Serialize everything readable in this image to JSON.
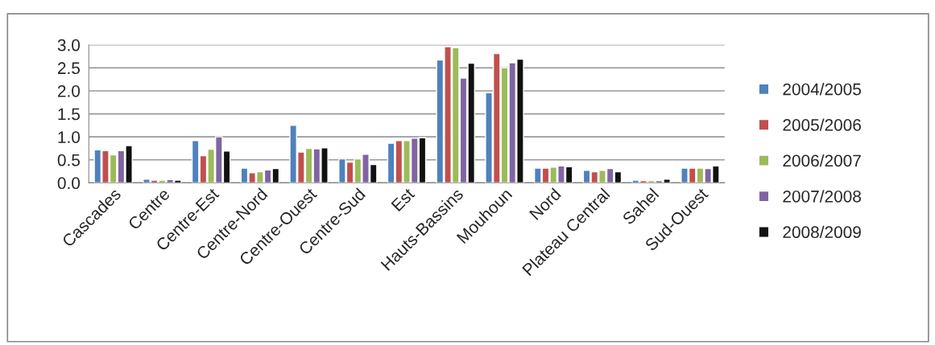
{
  "chart_data": {
    "type": "bar",
    "categories": [
      "Cascades",
      "Centre",
      "Centre-Est",
      "Centre-Nord",
      "Centre-Ouest",
      "Centre-Sud",
      "Est",
      "Hauts-Bassins",
      "Mouhoun",
      "Nord",
      "Plateau Central",
      "Sahel",
      "Sud-Ouest"
    ],
    "series": [
      {
        "name": "2004/2005",
        "color": "#4f81bd",
        "values": [
          0.72,
          0.08,
          0.92,
          0.32,
          1.25,
          0.52,
          0.86,
          2.67,
          1.96,
          0.32,
          0.27,
          0.06,
          0.32
        ]
      },
      {
        "name": "2005/2006",
        "color": "#c0504d",
        "values": [
          0.7,
          0.06,
          0.59,
          0.22,
          0.67,
          0.45,
          0.92,
          2.96,
          2.81,
          0.32,
          0.24,
          0.05,
          0.32
        ]
      },
      {
        "name": "2006/2007",
        "color": "#9bbb59",
        "values": [
          0.61,
          0.06,
          0.73,
          0.24,
          0.75,
          0.52,
          0.92,
          2.94,
          2.5,
          0.34,
          0.27,
          0.05,
          0.32
        ]
      },
      {
        "name": "2007/2008",
        "color": "#8064a2",
        "values": [
          0.7,
          0.07,
          1.0,
          0.28,
          0.74,
          0.62,
          0.97,
          2.28,
          2.61,
          0.37,
          0.31,
          0.05,
          0.31
        ]
      },
      {
        "name": "2008/2009",
        "color": "#111111",
        "values": [
          0.81,
          0.06,
          0.69,
          0.31,
          0.76,
          0.4,
          0.98,
          2.6,
          2.69,
          0.35,
          0.24,
          0.08,
          0.37
        ]
      }
    ],
    "ylim": [
      0,
      3.0
    ],
    "yticks": [
      {
        "value": 0,
        "label": "0.0"
      },
      {
        "value": 0.5,
        "label": "0.5"
      },
      {
        "value": 1.0,
        "label": "1.0"
      },
      {
        "value": 1.5,
        "label": "1.5"
      },
      {
        "value": 2.0,
        "label": "2.0"
      },
      {
        "value": 2.5,
        "label": "2.5"
      },
      {
        "value": 3.0,
        "label": "3.0"
      }
    ],
    "grid": "y",
    "legend": "right"
  }
}
